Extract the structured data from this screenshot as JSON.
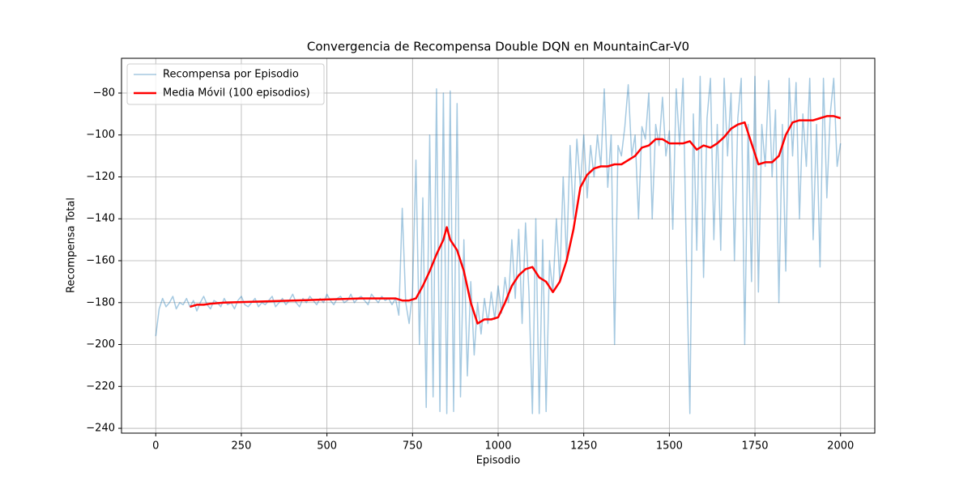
{
  "chart_data": {
    "type": "line",
    "title": "Convergencia de Recompensa Double DQN en MountainCar-V0",
    "x_label": "Episodio",
    "y_label": "Recompensa Total",
    "xlim": [
      -100,
      2100
    ],
    "ylim": [
      -242.3,
      -63.4
    ],
    "xticks": [
      0,
      250,
      500,
      750,
      1000,
      1250,
      1500,
      1750,
      2000
    ],
    "yticks": [
      {
        "value": -240,
        "label": "−240"
      },
      {
        "value": -220,
        "label": "−220"
      },
      {
        "value": -200,
        "label": "−200"
      },
      {
        "value": -180,
        "label": "−180"
      },
      {
        "value": -160,
        "label": "−160"
      },
      {
        "value": -140,
        "label": "−140"
      },
      {
        "value": -120,
        "label": "−120"
      },
      {
        "value": -100,
        "label": "−100"
      },
      {
        "value": -80,
        "label": "−80"
      }
    ],
    "grid": true,
    "legend": "upper-left",
    "series": [
      {
        "name": "Recompensa por Episodio",
        "color": "#1f77b4",
        "alpha": 0.4,
        "width": 1.5,
        "x": [
          0,
          10,
          20,
          30,
          40,
          50,
          60,
          70,
          80,
          90,
          100,
          110,
          120,
          130,
          140,
          150,
          160,
          170,
          180,
          190,
          200,
          210,
          220,
          230,
          240,
          250,
          260,
          270,
          280,
          290,
          300,
          310,
          320,
          330,
          340,
          350,
          360,
          370,
          380,
          390,
          400,
          410,
          420,
          430,
          440,
          450,
          460,
          470,
          480,
          490,
          500,
          510,
          520,
          530,
          540,
          550,
          560,
          570,
          580,
          590,
          600,
          610,
          620,
          630,
          640,
          650,
          660,
          670,
          680,
          690,
          700,
          710,
          720,
          730,
          740,
          750,
          760,
          770,
          780,
          790,
          800,
          810,
          820,
          830,
          840,
          850,
          860,
          870,
          880,
          890,
          900,
          910,
          920,
          930,
          940,
          950,
          960,
          970,
          980,
          990,
          1000,
          1010,
          1020,
          1030,
          1040,
          1050,
          1060,
          1070,
          1080,
          1090,
          1100,
          1110,
          1120,
          1130,
          1140,
          1150,
          1160,
          1170,
          1180,
          1190,
          1200,
          1210,
          1220,
          1230,
          1240,
          1250,
          1260,
          1270,
          1280,
          1290,
          1300,
          1310,
          1320,
          1330,
          1340,
          1350,
          1360,
          1370,
          1380,
          1390,
          1400,
          1410,
          1420,
          1430,
          1440,
          1450,
          1460,
          1470,
          1480,
          1490,
          1500,
          1510,
          1520,
          1530,
          1540,
          1550,
          1560,
          1570,
          1580,
          1590,
          1600,
          1610,
          1620,
          1630,
          1640,
          1650,
          1660,
          1670,
          1680,
          1690,
          1700,
          1710,
          1720,
          1730,
          1740,
          1750,
          1760,
          1770,
          1780,
          1790,
          1800,
          1810,
          1820,
          1830,
          1840,
          1850,
          1860,
          1870,
          1880,
          1890,
          1900,
          1910,
          1920,
          1930,
          1940,
          1950,
          1960,
          1970,
          1980,
          1990,
          2000
        ],
        "values": [
          -196,
          -183,
          -178,
          -182,
          -180,
          -177,
          -183,
          -180,
          -181,
          -178,
          -182,
          -179,
          -184,
          -180,
          -177,
          -181,
          -183,
          -179,
          -180,
          -182,
          -178,
          -181,
          -180,
          -183,
          -179,
          -177,
          -181,
          -182,
          -180,
          -178,
          -182,
          -180,
          -181,
          -179,
          -177,
          -182,
          -180,
          -178,
          -181,
          -179,
          -176,
          -180,
          -182,
          -178,
          -180,
          -177,
          -179,
          -181,
          -178,
          -180,
          -176,
          -179,
          -181,
          -178,
          -177,
          -180,
          -179,
          -176,
          -180,
          -178,
          -177,
          -179,
          -181,
          -176,
          -178,
          -180,
          -177,
          -179,
          -178,
          -181,
          -178,
          -186,
          -135,
          -180,
          -190,
          -175,
          -112,
          -200,
          -130,
          -230,
          -100,
          -225,
          -78,
          -232,
          -80,
          -233,
          -79,
          -232,
          -85,
          -225,
          -150,
          -215,
          -170,
          -205,
          -180,
          -195,
          -178,
          -190,
          -175,
          -188,
          -172,
          -185,
          -168,
          -180,
          -150,
          -178,
          -145,
          -190,
          -142,
          -175,
          -233,
          -140,
          -233,
          -150,
          -232,
          -160,
          -175,
          -140,
          -170,
          -120,
          -160,
          -105,
          -140,
          -102,
          -125,
          -100,
          -130,
          -105,
          -120,
          -100,
          -115,
          -78,
          -125,
          -100,
          -200,
          -105,
          -110,
          -96,
          -76,
          -110,
          -100,
          -140,
          -96,
          -102,
          -80,
          -140,
          -95,
          -105,
          -82,
          -110,
          -98,
          -145,
          -78,
          -105,
          -73,
          -160,
          -233,
          -90,
          -155,
          -72,
          -168,
          -92,
          -73,
          -150,
          -95,
          -155,
          -73,
          -110,
          -80,
          -160,
          -92,
          -73,
          -200,
          -95,
          -170,
          -72,
          -175,
          -95,
          -115,
          -74,
          -120,
          -88,
          -180,
          -95,
          -165,
          -73,
          -110,
          -75,
          -140,
          -90,
          -115,
          -73,
          -150,
          -95,
          -163,
          -73,
          -130,
          -90,
          -73,
          -115,
          -104
        ]
      },
      {
        "name": "Media Móvil (100 episodios)",
        "color": "#ff0000",
        "alpha": 1,
        "width": 2.5,
        "x": [
          100,
          120,
          140,
          160,
          200,
          300,
          400,
          500,
          600,
          700,
          720,
          740,
          760,
          780,
          800,
          820,
          840,
          850,
          860,
          880,
          900,
          920,
          940,
          960,
          980,
          1000,
          1020,
          1040,
          1060,
          1080,
          1100,
          1120,
          1140,
          1160,
          1180,
          1200,
          1220,
          1240,
          1260,
          1280,
          1300,
          1320,
          1340,
          1360,
          1380,
          1400,
          1420,
          1440,
          1460,
          1480,
          1500,
          1520,
          1540,
          1560,
          1580,
          1600,
          1620,
          1640,
          1660,
          1680,
          1700,
          1720,
          1740,
          1760,
          1780,
          1800,
          1820,
          1840,
          1860,
          1880,
          1900,
          1920,
          1940,
          1960,
          1980,
          2000
        ],
        "values": [
          -182,
          -181,
          -181,
          -180.5,
          -180,
          -179.5,
          -179,
          -178.5,
          -178,
          -178,
          -179,
          -179,
          -178,
          -172,
          -165,
          -157,
          -150,
          -144,
          -150,
          -155,
          -165,
          -180,
          -190,
          -188,
          -188,
          -187,
          -180,
          -172,
          -167,
          -164,
          -163,
          -168,
          -170,
          -175,
          -170,
          -160,
          -145,
          -125,
          -119,
          -116,
          -115,
          -115,
          -114,
          -114,
          -112,
          -110,
          -106,
          -105,
          -102,
          -102,
          -104,
          -104,
          -104,
          -103,
          -107,
          -105,
          -106,
          -104,
          -101,
          -97,
          -95,
          -94,
          -104,
          -114,
          -113,
          -113,
          -110,
          -100,
          -94,
          -93,
          -93,
          -93,
          -92,
          -91,
          -91,
          -92
        ]
      }
    ]
  }
}
